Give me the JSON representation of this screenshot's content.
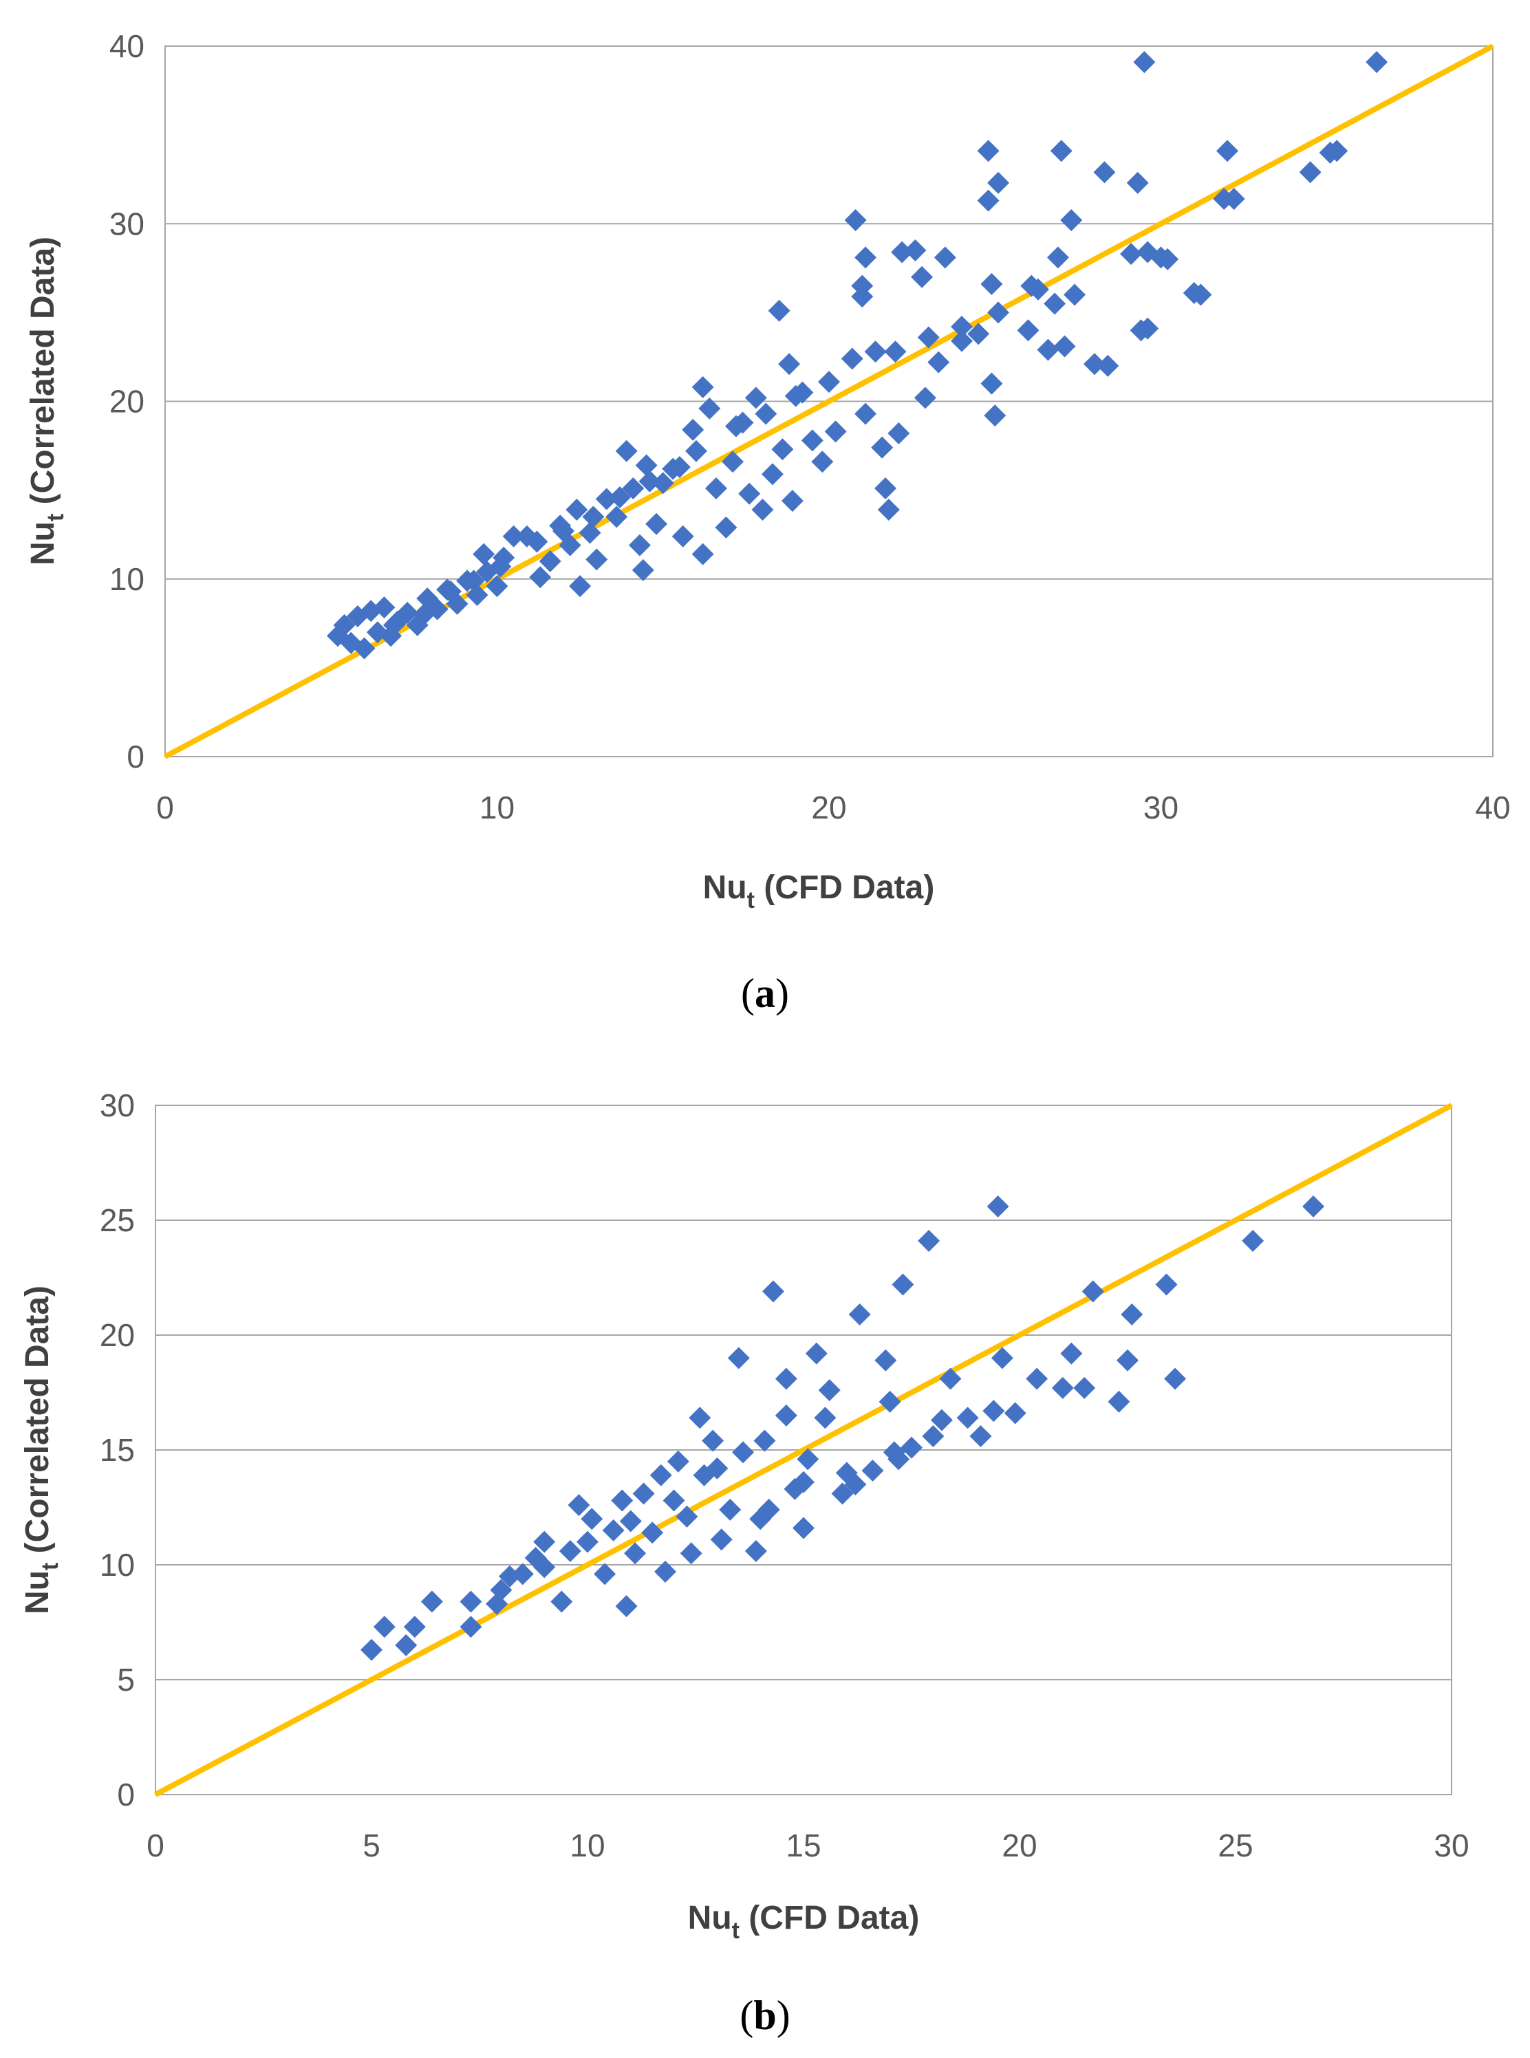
{
  "colors": {
    "points": "#4472C4",
    "fit_line": "#FFC000",
    "grid": "#A6A6A6",
    "frame": "#A6A6A6"
  },
  "chart_data": [
    {
      "type": "scatter",
      "panel_label": "a",
      "title": "",
      "xlabel": {
        "main": "Nu",
        "sub": "t",
        "rest": " (CFD Data)"
      },
      "ylabel": {
        "main": "Nu",
        "sub": "t",
        "rest": " (Correlated Data)"
      },
      "xlim": [
        0,
        40
      ],
      "ylim": [
        0,
        40
      ],
      "xticks": [
        0,
        10,
        20,
        30,
        40
      ],
      "yticks": [
        0,
        10,
        20,
        30,
        40
      ],
      "grid": "horizontal",
      "reference_line": {
        "x": [
          0,
          40
        ],
        "y": [
          0,
          40
        ]
      },
      "series": [
        {
          "name": "Nu_t",
          "marker": "diamond",
          "points": [
            [
              5.2,
              6.8
            ],
            [
              5.4,
              7.4
            ],
            [
              5.6,
              6.4
            ],
            [
              5.8,
              7.9
            ],
            [
              6.0,
              6.1
            ],
            [
              6.2,
              8.2
            ],
            [
              6.4,
              7.0
            ],
            [
              6.6,
              8.4
            ],
            [
              6.8,
              6.8
            ],
            [
              7.0,
              7.6
            ],
            [
              7.3,
              8.1
            ],
            [
              7.6,
              7.4
            ],
            [
              7.9,
              8.9
            ],
            [
              8.2,
              8.3
            ],
            [
              8.5,
              9.4
            ],
            [
              8.8,
              8.6
            ],
            [
              9.1,
              9.9
            ],
            [
              9.4,
              9.1
            ],
            [
              9.7,
              10.4
            ],
            [
              10.0,
              9.6
            ],
            [
              10.2,
              11.2
            ],
            [
              9.6,
              11.4
            ],
            [
              10.5,
              12.4
            ],
            [
              10.9,
              12.4
            ],
            [
              11.3,
              10.1
            ],
            [
              11.6,
              11.0
            ],
            [
              11.9,
              13.0
            ],
            [
              12.2,
              11.9
            ],
            [
              12.4,
              13.9
            ],
            [
              12.5,
              9.6
            ],
            [
              12.8,
              12.6
            ],
            [
              13.0,
              11.1
            ],
            [
              13.3,
              14.5
            ],
            [
              13.6,
              13.5
            ],
            [
              13.9,
              17.2
            ],
            [
              14.1,
              15.1
            ],
            [
              14.3,
              11.9
            ],
            [
              14.5,
              16.4
            ],
            [
              14.4,
              10.5
            ],
            [
              14.8,
              13.1
            ],
            [
              15.0,
              15.4
            ],
            [
              15.3,
              16.2
            ],
            [
              15.6,
              12.4
            ],
            [
              15.9,
              18.4
            ],
            [
              16.2,
              20.8
            ],
            [
              16.4,
              19.6
            ],
            [
              16.2,
              11.4
            ],
            [
              16.6,
              15.1
            ],
            [
              16.9,
              12.9
            ],
            [
              17.1,
              16.6
            ],
            [
              17.4,
              18.8
            ],
            [
              17.6,
              14.8
            ],
            [
              17.8,
              20.2
            ],
            [
              18.0,
              13.9
            ],
            [
              18.3,
              15.9
            ],
            [
              18.5,
              25.1
            ],
            [
              18.6,
              17.3
            ],
            [
              18.8,
              22.1
            ],
            [
              18.9,
              14.4
            ],
            [
              19.2,
              20.5
            ],
            [
              19.5,
              17.8
            ],
            [
              19.8,
              16.6
            ],
            [
              20.2,
              18.3
            ],
            [
              20.8,
              30.2
            ],
            [
              20.7,
              22.4
            ],
            [
              21.1,
              28.1
            ],
            [
              21.0,
              25.9
            ],
            [
              21.0,
              26.5
            ],
            [
              21.1,
              19.3
            ],
            [
              21.4,
              22.8
            ],
            [
              21.6,
              17.4
            ],
            [
              21.7,
              15.1
            ],
            [
              21.8,
              13.9
            ],
            [
              22.1,
              18.2
            ],
            [
              22.2,
              28.4
            ],
            [
              22.6,
              28.5
            ],
            [
              22.8,
              27.0
            ],
            [
              22.9,
              20.2
            ],
            [
              23.3,
              22.2
            ],
            [
              23.5,
              28.1
            ],
            [
              24.0,
              23.4
            ],
            [
              24.5,
              23.8
            ],
            [
              24.8,
              31.3
            ],
            [
              24.8,
              34.1
            ],
            [
              25.1,
              32.3
            ],
            [
              24.9,
              26.6
            ],
            [
              25.1,
              25.0
            ],
            [
              24.9,
              21.0
            ],
            [
              25.0,
              19.2
            ],
            [
              26.0,
              24.0
            ],
            [
              26.3,
              26.3
            ],
            [
              26.6,
              22.9
            ],
            [
              26.8,
              25.5
            ],
            [
              26.9,
              28.1
            ],
            [
              27.0,
              34.1
            ],
            [
              27.1,
              23.1
            ],
            [
              27.3,
              30.2
            ],
            [
              27.4,
              26.0
            ],
            [
              28.0,
              22.1
            ],
            [
              28.3,
              32.9
            ],
            [
              28.4,
              22.0
            ],
            [
              29.1,
              28.3
            ],
            [
              29.3,
              32.3
            ],
            [
              29.4,
              24.0
            ],
            [
              29.5,
              39.1
            ],
            [
              29.6,
              28.4
            ],
            [
              29.6,
              24.1
            ],
            [
              30.0,
              28.1
            ],
            [
              30.2,
              28.0
            ],
            [
              31.0,
              26.1
            ],
            [
              31.2,
              26.0
            ],
            [
              31.9,
              31.4
            ],
            [
              32.0,
              34.1
            ],
            [
              32.2,
              31.4
            ],
            [
              34.5,
              32.9
            ],
            [
              35.1,
              34.0
            ],
            [
              35.3,
              34.1
            ],
            [
              36.5,
              39.1
            ],
            [
              6.9,
              7.4
            ],
            [
              7.8,
              8.0
            ],
            [
              8.6,
              9.3
            ],
            [
              9.3,
              9.9
            ],
            [
              10.1,
              10.7
            ],
            [
              11.2,
              12.1
            ],
            [
              12.0,
              12.7
            ],
            [
              12.9,
              13.5
            ],
            [
              13.7,
              14.6
            ],
            [
              14.6,
              15.5
            ],
            [
              15.5,
              16.3
            ],
            [
              16.0,
              17.2
            ],
            [
              17.2,
              18.6
            ],
            [
              18.1,
              19.3
            ],
            [
              19.0,
              20.3
            ],
            [
              20.0,
              21.1
            ],
            [
              22.0,
              22.8
            ],
            [
              23.0,
              23.6
            ],
            [
              24.0,
              24.2
            ],
            [
              26.1,
              26.5
            ]
          ]
        }
      ]
    },
    {
      "type": "scatter",
      "panel_label": "b",
      "title": "",
      "xlabel": {
        "main": "Nu",
        "sub": "t",
        "rest": " (CFD Data)"
      },
      "ylabel": {
        "main": "Nu",
        "sub": "t",
        "rest": " (Correlated Data)"
      },
      "xlim": [
        0,
        30
      ],
      "ylim": [
        0,
        30
      ],
      "xticks": [
        0,
        5,
        10,
        15,
        20,
        25,
        30
      ],
      "yticks": [
        0,
        5,
        10,
        15,
        20,
        25,
        30
      ],
      "grid": "horizontal",
      "reference_line": {
        "x": [
          0,
          30
        ],
        "y": [
          0,
          30
        ]
      },
      "series": [
        {
          "name": "Nu_t",
          "marker": "diamond",
          "points": [
            [
              5.0,
              6.3
            ],
            [
              5.3,
              7.3
            ],
            [
              5.8,
              6.5
            ],
            [
              6.0,
              7.3
            ],
            [
              6.4,
              8.4
            ],
            [
              7.3,
              7.3
            ],
            [
              7.3,
              8.4
            ],
            [
              7.9,
              8.3
            ],
            [
              8.2,
              9.5
            ],
            [
              8.5,
              9.6
            ],
            [
              8.8,
              10.3
            ],
            [
              9.0,
              11.0
            ],
            [
              9.4,
              8.4
            ],
            [
              9.6,
              10.6
            ],
            [
              9.8,
              12.6
            ],
            [
              10.1,
              12.0
            ],
            [
              10.4,
              9.6
            ],
            [
              10.6,
              11.5
            ],
            [
              10.8,
              12.8
            ],
            [
              10.9,
              8.2
            ],
            [
              11.1,
              10.5
            ],
            [
              11.3,
              13.1
            ],
            [
              11.5,
              11.4
            ],
            [
              11.7,
              13.9
            ],
            [
              11.8,
              9.7
            ],
            [
              12.1,
              14.5
            ],
            [
              12.3,
              12.1
            ],
            [
              12.4,
              10.5
            ],
            [
              12.6,
              16.4
            ],
            [
              12.7,
              13.9
            ],
            [
              12.9,
              15.4
            ],
            [
              13.1,
              11.1
            ],
            [
              13.3,
              12.4
            ],
            [
              13.5,
              19.0
            ],
            [
              13.6,
              14.9
            ],
            [
              13.9,
              10.6
            ],
            [
              14.1,
              15.4
            ],
            [
              14.2,
              12.4
            ],
            [
              14.3,
              21.9
            ],
            [
              14.6,
              18.1
            ],
            [
              14.6,
              16.5
            ],
            [
              14.8,
              13.3
            ],
            [
              15.0,
              11.6
            ],
            [
              15.1,
              14.6
            ],
            [
              15.3,
              19.2
            ],
            [
              15.5,
              16.4
            ],
            [
              15.6,
              17.6
            ],
            [
              15.9,
              13.1
            ],
            [
              16.2,
              13.5
            ],
            [
              16.3,
              20.9
            ],
            [
              16.6,
              14.1
            ],
            [
              16.9,
              18.9
            ],
            [
              17.0,
              17.1
            ],
            [
              17.1,
              14.9
            ],
            [
              17.3,
              22.2
            ],
            [
              17.5,
              15.1
            ],
            [
              17.9,
              24.1
            ],
            [
              18.0,
              15.6
            ],
            [
              18.2,
              16.3
            ],
            [
              18.4,
              18.1
            ],
            [
              18.8,
              16.4
            ],
            [
              19.1,
              15.6
            ],
            [
              19.4,
              16.7
            ],
            [
              19.5,
              25.6
            ],
            [
              19.6,
              19.0
            ],
            [
              19.9,
              16.6
            ],
            [
              20.4,
              18.1
            ],
            [
              21.0,
              17.7
            ],
            [
              21.2,
              19.2
            ],
            [
              21.5,
              17.7
            ],
            [
              21.7,
              21.9
            ],
            [
              22.3,
              17.1
            ],
            [
              22.5,
              18.9
            ],
            [
              22.6,
              20.9
            ],
            [
              23.4,
              22.2
            ],
            [
              23.6,
              18.1
            ],
            [
              25.4,
              24.1
            ],
            [
              26.8,
              25.6
            ],
            [
              10.0,
              11.0
            ],
            [
              11.0,
              11.9
            ],
            [
              12.0,
              12.8
            ],
            [
              13.0,
              14.2
            ],
            [
              14.0,
              12.0
            ],
            [
              15.0,
              13.6
            ],
            [
              16.0,
              14.0
            ],
            [
              17.2,
              14.6
            ],
            [
              9.0,
              9.9
            ],
            [
              8.0,
              8.9
            ]
          ]
        }
      ]
    }
  ]
}
